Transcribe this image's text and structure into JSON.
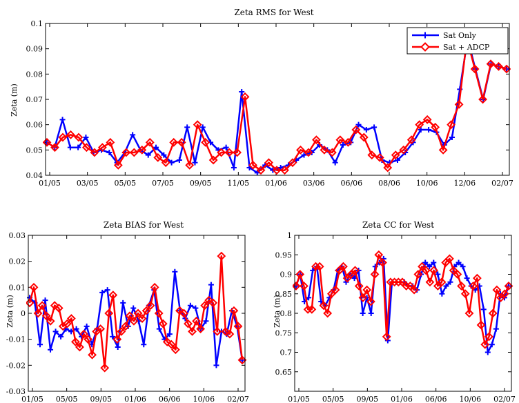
{
  "chart_data": [
    {
      "type": "line",
      "title": "Zeta RMS for West",
      "xlabel": "",
      "ylabel": "Zeta (m)",
      "ylim": [
        0.04,
        0.1
      ],
      "yticks": [
        "0.04",
        "0.05",
        "0.06",
        "0.07",
        "0.08",
        "0.09",
        "0.1"
      ],
      "xticklabels": [
        "01/05",
        "03/05",
        "05/05",
        "07/05",
        "09/05",
        "11/05",
        "01/06",
        "03/06",
        "06/06",
        "08/06",
        "10/06",
        "12/06",
        "02/07"
      ],
      "legend": {
        "position": "top-right",
        "entries": [
          "Sat Only",
          "Sat + ADCP"
        ]
      },
      "series": [
        {
          "name": "Sat Only",
          "color": "#0000ff",
          "marker": "plus",
          "values": [
            0.053,
            0.051,
            0.062,
            0.051,
            0.051,
            0.055,
            0.049,
            0.05,
            0.049,
            0.045,
            0.049,
            0.056,
            0.05,
            0.048,
            0.051,
            0.048,
            0.045,
            0.046,
            0.059,
            0.045,
            0.059,
            0.053,
            0.05,
            0.051,
            0.043,
            0.073,
            0.043,
            0.041,
            0.044,
            0.042,
            0.043,
            0.044,
            0.046,
            0.048,
            0.049,
            0.052,
            0.05,
            0.045,
            0.052,
            0.053,
            0.06,
            0.058,
            0.059,
            0.046,
            0.045,
            0.046,
            0.049,
            0.053,
            0.058,
            0.058,
            0.057,
            0.052,
            0.055,
            0.074,
            0.094,
            0.082,
            0.07,
            0.084,
            0.083,
            0.082
          ]
        },
        {
          "name": "Sat + ADCP",
          "color": "#ff0000",
          "marker": "diamond",
          "values": [
            0.053,
            0.051,
            0.055,
            0.056,
            0.055,
            0.051,
            0.049,
            0.051,
            0.053,
            0.044,
            0.049,
            0.049,
            0.05,
            0.053,
            0.047,
            0.045,
            0.053,
            0.053,
            0.044,
            0.06,
            0.053,
            0.046,
            0.049,
            0.049,
            0.049,
            0.071,
            0.044,
            0.042,
            0.045,
            0.042,
            0.042,
            0.045,
            0.05,
            0.049,
            0.054,
            0.05,
            0.049,
            0.054,
            0.053,
            0.058,
            0.055,
            0.048,
            0.047,
            0.043,
            0.048,
            0.05,
            0.054,
            0.06,
            0.062,
            0.059,
            0.05,
            0.06,
            0.068,
            0.094,
            0.082,
            0.07,
            0.084,
            0.083,
            0.082
          ]
        }
      ]
    },
    {
      "type": "line",
      "title": "Zeta BIAS for West",
      "xlabel": "",
      "ylabel": "Zeta (m)",
      "ylim": [
        -0.03,
        0.03
      ],
      "yticks": [
        "-0.03",
        "-0.02",
        "-0.01",
        "0",
        "0.01",
        "0.02",
        "0.03"
      ],
      "xticklabels": [
        "01/05",
        "05/05",
        "09/05",
        "01/06",
        "06/06",
        "10/06",
        "02/07"
      ],
      "series": [
        {
          "name": "Sat Only",
          "color": "#0000ff",
          "marker": "plus",
          "values": [
            0.006,
            0.004,
            -0.012,
            0.005,
            -0.014,
            -0.007,
            -0.009,
            -0.006,
            -0.007,
            -0.006,
            -0.009,
            -0.005,
            -0.012,
            -0.006,
            0.008,
            0.009,
            -0.009,
            -0.013,
            0.004,
            -0.005,
            0.002,
            -0.003,
            -0.012,
            0.003,
            0.009,
            -0.006,
            -0.01,
            -0.008,
            0.016,
            0.001,
            -0.002,
            0.003,
            0.002,
            -0.006,
            -0.003,
            0.011,
            -0.02,
            -0.007,
            -0.008,
            0.001,
            -0.005,
            -0.018
          ]
        },
        {
          "name": "Sat + ADCP",
          "color": "#ff0000",
          "marker": "diamond",
          "values": [
            0.004,
            0.01,
            0.0,
            0.003,
            -0.001,
            -0.003,
            0.003,
            0.002,
            -0.005,
            -0.004,
            -0.002,
            -0.011,
            -0.013,
            -0.008,
            -0.01,
            -0.016,
            -0.007,
            -0.006,
            -0.021,
            0.0,
            0.007,
            -0.01,
            -0.007,
            -0.005,
            -0.001,
            -0.003,
            0.0,
            -0.002,
            0.001,
            0.003,
            0.01,
            0.0,
            -0.004,
            -0.011,
            -0.012,
            -0.014,
            0.001,
            0.0,
            -0.004,
            -0.007,
            -0.003,
            -0.006,
            0.003,
            0.005,
            0.004,
            -0.007,
            0.022,
            -0.007,
            -0.008,
            0.001,
            -0.005,
            -0.018
          ]
        }
      ]
    },
    {
      "type": "line",
      "title": "Zeta CC for West",
      "xlabel": "",
      "ylabel": "Zeta (m)",
      "ylim": [
        0.6,
        1.0
      ],
      "yticks": [
        "0.65",
        "0.7",
        "0.75",
        "0.8",
        "0.85",
        "0.9",
        "0.95",
        "1"
      ],
      "xticklabels": [
        "01/05",
        "05/05",
        "09/05",
        "01/06",
        "06/06",
        "10/06",
        "02/07"
      ],
      "series": [
        {
          "name": "Sat Only",
          "color": "#0000ff",
          "marker": "plus",
          "values": [
            0.87,
            0.9,
            0.83,
            0.84,
            0.91,
            0.92,
            0.83,
            0.82,
            0.84,
            0.86,
            0.91,
            0.92,
            0.88,
            0.9,
            0.89,
            0.91,
            0.8,
            0.84,
            0.8,
            0.92,
            0.93,
            0.94,
            0.73,
            0.88,
            0.88,
            0.88,
            0.88,
            0.87,
            0.87,
            0.86,
            0.9,
            0.93,
            0.92,
            0.93,
            0.9,
            0.85,
            0.87,
            0.88,
            0.92,
            0.93,
            0.92,
            0.89,
            0.87,
            0.86,
            0.87,
            0.81,
            0.7,
            0.72,
            0.76,
            0.85,
            0.84,
            0.87
          ]
        },
        {
          "name": "Sat + ADCP",
          "color": "#ff0000",
          "marker": "diamond",
          "values": [
            0.87,
            0.9,
            0.87,
            0.81,
            0.81,
            0.92,
            0.92,
            0.82,
            0.8,
            0.85,
            0.86,
            0.91,
            0.92,
            0.89,
            0.9,
            0.91,
            0.87,
            0.84,
            0.86,
            0.83,
            0.9,
            0.95,
            0.93,
            0.74,
            0.88,
            0.88,
            0.88,
            0.88,
            0.87,
            0.87,
            0.86,
            0.9,
            0.92,
            0.91,
            0.88,
            0.91,
            0.87,
            0.88,
            0.93,
            0.94,
            0.91,
            0.9,
            0.87,
            0.85,
            0.8,
            0.87,
            0.89,
            0.77,
            0.72,
            0.74,
            0.8,
            0.86,
            0.84,
            0.85,
            0.87
          ]
        }
      ]
    }
  ]
}
